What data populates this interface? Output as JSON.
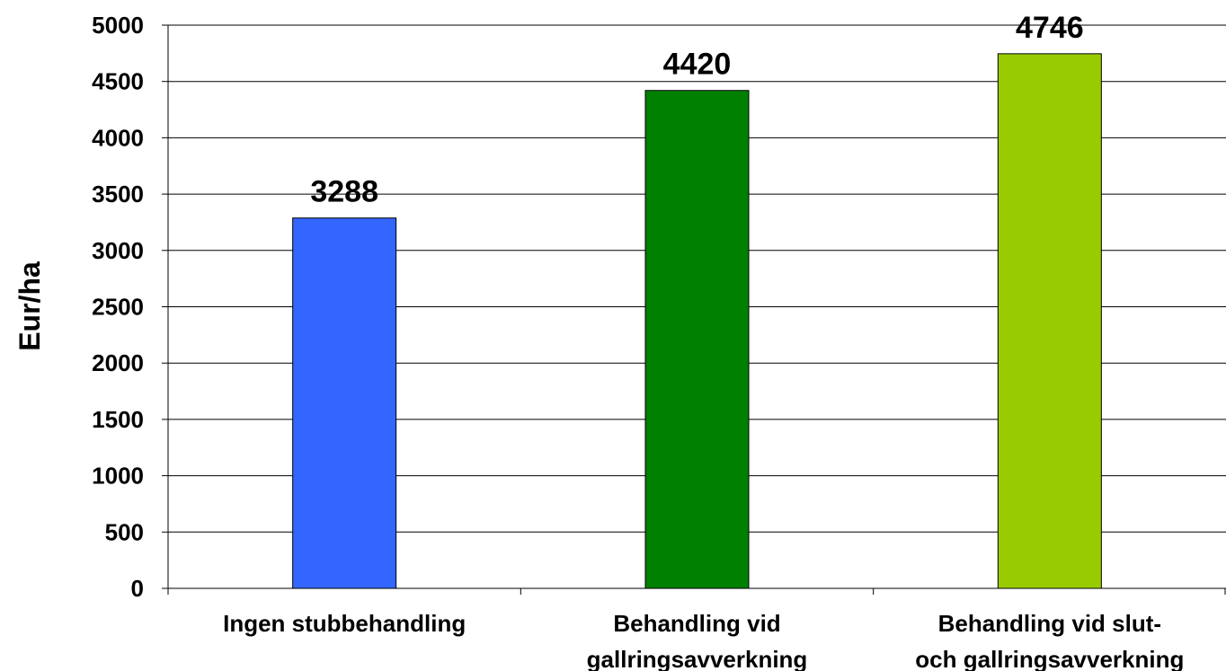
{
  "chart_data": {
    "type": "bar",
    "categories": [
      [
        "Ingen stubbehandling"
      ],
      [
        "Behandling vid",
        "gallringsavverkning"
      ],
      [
        "Behandling vid slut-",
        "och gallringsavverkning"
      ]
    ],
    "values": [
      3288,
      4420,
      4746
    ],
    "data_labels": [
      "3288",
      "4420",
      "4746"
    ],
    "bar_colors": [
      "#3366FF",
      "#008000",
      "#99CC00"
    ],
    "title": "",
    "xlabel": "",
    "ylabel": "Eur/ha",
    "ylim": [
      0,
      5000
    ],
    "yticks": [
      0,
      500,
      1000,
      1500,
      2000,
      2500,
      3000,
      3500,
      4000,
      4500,
      5000
    ],
    "grid": true,
    "legend": "none"
  }
}
